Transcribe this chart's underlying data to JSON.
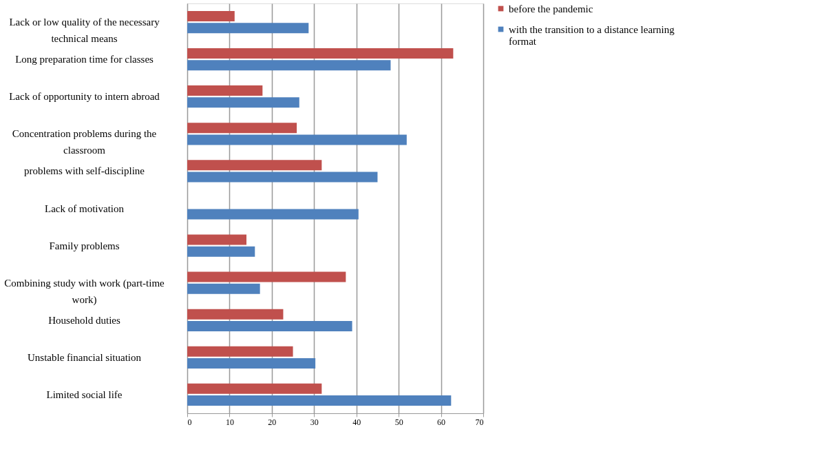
{
  "chart_data": {
    "type": "bar",
    "orientation": "horizontal",
    "categories": [
      "Lack or low quality of the necessary technical means",
      "Long preparation time for classes",
      "Lack of opportunity to intern abroad",
      "Concentration problems during the classroom",
      "problems with self-discipline",
      "Lack of motivation",
      "Family problems",
      "Combining study with work (part-time work)",
      "Household duties",
      "Unstable financial situation",
      "Limited social life"
    ],
    "series": [
      {
        "name": "before the pandemic",
        "color": "#c0504d",
        "values": [
          11.2,
          62.9,
          17.8,
          25.9,
          31.8,
          null,
          14.0,
          37.5,
          22.7,
          25.0,
          31.8
        ]
      },
      {
        "name": "with the transition to a distance learning format",
        "color": "#4f81bd",
        "values": [
          28.7,
          48.1,
          26.5,
          51.9,
          45.0,
          40.5,
          16.0,
          17.2,
          39.0,
          30.3,
          62.4
        ]
      }
    ],
    "xlim": [
      0,
      70
    ],
    "xticks": [
      0,
      10,
      20,
      30,
      40,
      50,
      60,
      70
    ],
    "grid": "x",
    "legend": "right"
  }
}
